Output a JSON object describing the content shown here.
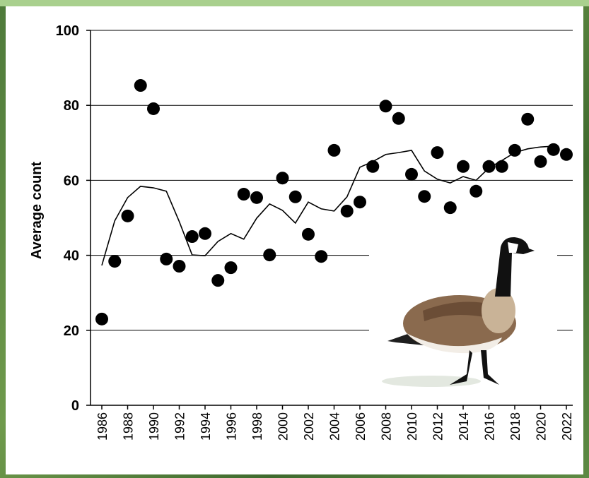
{
  "chart_data": {
    "type": "scatter",
    "y_label": "Average count",
    "x": [
      1986,
      1987,
      1988,
      1989,
      1990,
      1991,
      1992,
      1993,
      1994,
      1995,
      1996,
      1997,
      1998,
      1999,
      2000,
      2001,
      2002,
      2003,
      2004,
      2005,
      2006,
      2007,
      2008,
      2009,
      2010,
      2011,
      2012,
      2013,
      2014,
      2015,
      2016,
      2017,
      2018,
      2019,
      2020,
      2021,
      2022
    ],
    "series": [
      {
        "type": "scatter",
        "color": "#000000",
        "values": [
          23,
          38.4,
          50.5,
          85.3,
          79.1,
          39,
          37.1,
          45,
          45.8,
          33.3,
          36.7,
          56.3,
          55.4,
          40.1,
          60.6,
          55.6,
          45.6,
          39.7,
          68,
          51.8,
          54.2,
          63.7,
          79.8,
          76.5,
          61.6,
          55.7,
          67.4,
          52.7,
          63.7,
          57.1,
          63.7,
          63.7,
          68,
          76.3,
          65,
          68.2,
          66.9
        ]
      },
      {
        "type": "line",
        "color": "#000000",
        "values": [
          37.3,
          49.2,
          55.4,
          58.4,
          58,
          57.1,
          49,
          40.1,
          39.9,
          43.7,
          45.8,
          44.3,
          49.9,
          53.7,
          52,
          48.6,
          54.2,
          52.4,
          51.8,
          55.6,
          63.5,
          65,
          66.9,
          67.4,
          68,
          62.5,
          60.3,
          59.3,
          61,
          60,
          63.3,
          65.3,
          67.4,
          68.4,
          68.9,
          69.1,
          null
        ]
      }
    ],
    "xlim": [
      1986,
      2022
    ],
    "xticks": [
      1986,
      1988,
      1990,
      1992,
      1994,
      1996,
      1998,
      2000,
      2002,
      2004,
      2006,
      2008,
      2010,
      2012,
      2014,
      2016,
      2018,
      2020,
      2022
    ],
    "ylim": [
      0,
      100
    ],
    "yticks": [
      0,
      20,
      40,
      60,
      80,
      100
    ],
    "grid": true
  }
}
